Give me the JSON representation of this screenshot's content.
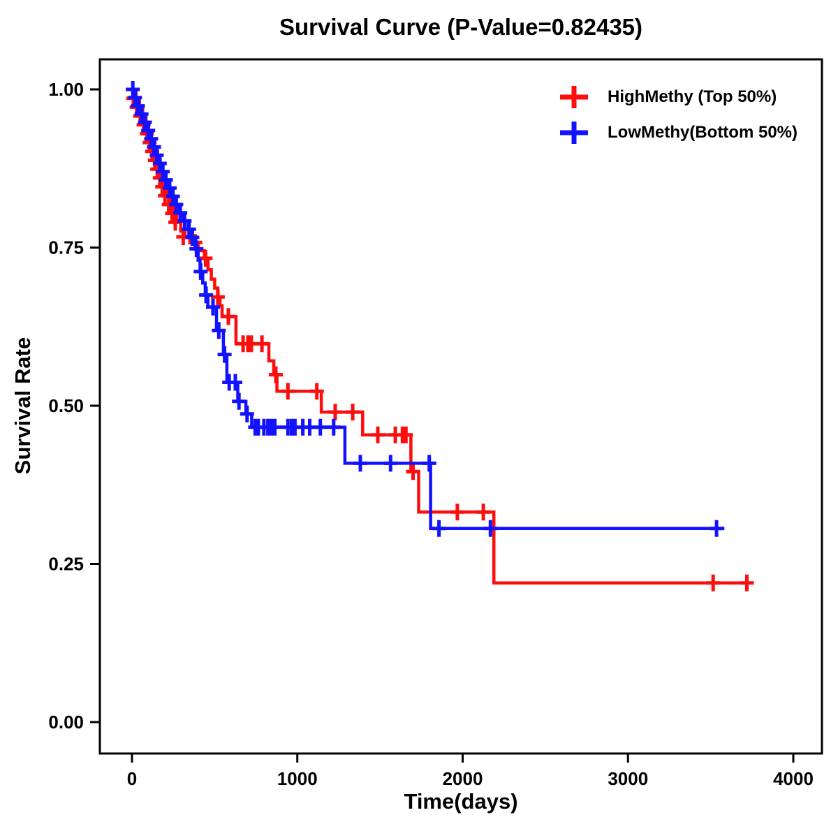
{
  "title": "Survival Curve (P-Value=0.82435)",
  "legend": {
    "items": [
      {
        "label": "HighMethy (Top 50%)",
        "color": "#FE0D0D"
      },
      {
        "label": "LowMethy(Bottom 50%)",
        "color": "#1212FE"
      }
    ]
  },
  "chart_data": {
    "type": "line",
    "subtype": "kaplan-meier-step-curve",
    "title": "Survival Curve (P-Value=0.82435)",
    "p_value": "0.82435",
    "xlabel": "Time(days)",
    "ylabel": "Survival Rate",
    "xlim": [
      -190,
      4170
    ],
    "ylim": [
      -0.05,
      1.047
    ],
    "grid": false,
    "legend_position": "upper right",
    "x_axis": {
      "values": [
        0,
        1000,
        2000,
        3000,
        4000
      ],
      "labels": [
        "0",
        "1000",
        "2000",
        "3000",
        "4000"
      ]
    },
    "y_axis": {
      "values": [
        1.0,
        0.75,
        0.5,
        0.25,
        0.0
      ],
      "labels": [
        "1.00",
        "0.75",
        "0.50",
        "0.25",
        "0.00"
      ]
    },
    "censor_marker": "plus",
    "series": [
      {
        "name": "HighMethy (Top 50%)",
        "color": "#FE0D0D",
        "end_time": 3755,
        "step_points": [
          [
            0,
            1.0
          ],
          [
            25,
            0.986
          ],
          [
            45,
            0.972
          ],
          [
            65,
            0.958
          ],
          [
            85,
            0.944
          ],
          [
            100,
            0.93
          ],
          [
            115,
            0.916
          ],
          [
            130,
            0.902
          ],
          [
            145,
            0.888
          ],
          [
            160,
            0.874
          ],
          [
            175,
            0.86
          ],
          [
            190,
            0.846
          ],
          [
            210,
            0.832
          ],
          [
            230,
            0.818
          ],
          [
            250,
            0.804
          ],
          [
            270,
            0.79
          ],
          [
            295,
            0.776
          ],
          [
            320,
            0.767
          ],
          [
            350,
            0.758
          ],
          [
            400,
            0.745
          ],
          [
            438,
            0.733
          ],
          [
            460,
            0.715
          ],
          [
            480,
            0.7
          ],
          [
            500,
            0.686
          ],
          [
            519,
            0.672
          ],
          [
            532,
            0.658
          ],
          [
            545,
            0.641
          ],
          [
            629,
            0.598
          ],
          [
            828,
            0.571
          ],
          [
            858,
            0.549
          ],
          [
            877,
            0.523
          ],
          [
            1145,
            0.49
          ],
          [
            1395,
            0.454
          ],
          [
            1687,
            0.396
          ],
          [
            1734,
            0.332
          ],
          [
            2189,
            0.22
          ]
        ],
        "censor_marks": [
          [
            8,
            0.986
          ],
          [
            28,
            0.972
          ],
          [
            50,
            0.958
          ],
          [
            70,
            0.944
          ],
          [
            90,
            0.93
          ],
          [
            107,
            0.916
          ],
          [
            122,
            0.902
          ],
          [
            138,
            0.888
          ],
          [
            153,
            0.874
          ],
          [
            168,
            0.86
          ],
          [
            183,
            0.846
          ],
          [
            200,
            0.832
          ],
          [
            222,
            0.818
          ],
          [
            243,
            0.804
          ],
          [
            262,
            0.79
          ],
          [
            310,
            0.767
          ],
          [
            383,
            0.758
          ],
          [
            445,
            0.733
          ],
          [
            519,
            0.672
          ],
          [
            583,
            0.641
          ],
          [
            672,
            0.598
          ],
          [
            701,
            0.598
          ],
          [
            722,
            0.598
          ],
          [
            786,
            0.598
          ],
          [
            870,
            0.549
          ],
          [
            943,
            0.523
          ],
          [
            1118,
            0.523
          ],
          [
            1229,
            0.49
          ],
          [
            1335,
            0.49
          ],
          [
            1487,
            0.454
          ],
          [
            1593,
            0.454
          ],
          [
            1636,
            0.454
          ],
          [
            1657,
            0.454
          ],
          [
            1700,
            0.396
          ],
          [
            1968,
            0.332
          ],
          [
            2125,
            0.332
          ],
          [
            3515,
            0.22
          ],
          [
            3719,
            0.22
          ]
        ]
      },
      {
        "name": "LowMethy(Bottom 50%)",
        "color": "#1212FE",
        "end_time": 3583,
        "step_points": [
          [
            0,
            1.0
          ],
          [
            20,
            0.987
          ],
          [
            40,
            0.974
          ],
          [
            60,
            0.961
          ],
          [
            80,
            0.948
          ],
          [
            100,
            0.935
          ],
          [
            118,
            0.922
          ],
          [
            135,
            0.909
          ],
          [
            152,
            0.896
          ],
          [
            170,
            0.883
          ],
          [
            188,
            0.87
          ],
          [
            206,
            0.857
          ],
          [
            225,
            0.844
          ],
          [
            245,
            0.831
          ],
          [
            265,
            0.818
          ],
          [
            288,
            0.805
          ],
          [
            312,
            0.792
          ],
          [
            340,
            0.779
          ],
          [
            361,
            0.766
          ],
          [
            383,
            0.748
          ],
          [
            400,
            0.73
          ],
          [
            412,
            0.712
          ],
          [
            428,
            0.694
          ],
          [
            443,
            0.675
          ],
          [
            459,
            0.656
          ],
          [
            511,
            0.619
          ],
          [
            553,
            0.581
          ],
          [
            574,
            0.537
          ],
          [
            640,
            0.507
          ],
          [
            689,
            0.487
          ],
          [
            724,
            0.466
          ],
          [
            1288,
            0.409
          ],
          [
            1806,
            0.306
          ]
        ],
        "censor_marks": [
          [
            5,
            1.0
          ],
          [
            18,
            0.987
          ],
          [
            36,
            0.974
          ],
          [
            58,
            0.961
          ],
          [
            78,
            0.948
          ],
          [
            98,
            0.935
          ],
          [
            116,
            0.922
          ],
          [
            133,
            0.909
          ],
          [
            150,
            0.896
          ],
          [
            168,
            0.883
          ],
          [
            186,
            0.87
          ],
          [
            205,
            0.857
          ],
          [
            228,
            0.844
          ],
          [
            248,
            0.831
          ],
          [
            268,
            0.818
          ],
          [
            292,
            0.805
          ],
          [
            318,
            0.792
          ],
          [
            345,
            0.779
          ],
          [
            365,
            0.766
          ],
          [
            390,
            0.748
          ],
          [
            415,
            0.712
          ],
          [
            448,
            0.675
          ],
          [
            490,
            0.656
          ],
          [
            525,
            0.619
          ],
          [
            560,
            0.581
          ],
          [
            588,
            0.537
          ],
          [
            625,
            0.537
          ],
          [
            647,
            0.507
          ],
          [
            696,
            0.487
          ],
          [
            745,
            0.466
          ],
          [
            764,
            0.466
          ],
          [
            798,
            0.466
          ],
          [
            822,
            0.466
          ],
          [
            843,
            0.466
          ],
          [
            864,
            0.466
          ],
          [
            943,
            0.466
          ],
          [
            965,
            0.466
          ],
          [
            986,
            0.466
          ],
          [
            1033,
            0.466
          ],
          [
            1075,
            0.466
          ],
          [
            1139,
            0.466
          ],
          [
            1220,
            0.466
          ],
          [
            1381,
            0.409
          ],
          [
            1564,
            0.409
          ],
          [
            1798,
            0.409
          ],
          [
            1857,
            0.306
          ],
          [
            2168,
            0.306
          ],
          [
            3536,
            0.306
          ]
        ]
      }
    ]
  }
}
